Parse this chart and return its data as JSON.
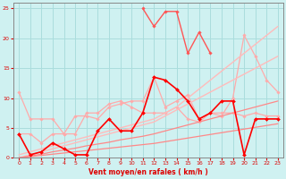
{
  "title": "",
  "xlabel": "Vent moyen/en rafales ( km/h )",
  "background_color": "#cff1f1",
  "grid_color": "#aadddd",
  "x": [
    0,
    1,
    2,
    3,
    4,
    5,
    6,
    7,
    8,
    9,
    10,
    11,
    12,
    13,
    14,
    15,
    16,
    17,
    18,
    19,
    20,
    21,
    22,
    23
  ],
  "xlim": [
    -0.5,
    23.5
  ],
  "ylim": [
    0,
    26
  ],
  "yticks": [
    0,
    5,
    10,
    15,
    20,
    25
  ],
  "xticks": [
    0,
    1,
    2,
    3,
    4,
    5,
    6,
    7,
    8,
    9,
    10,
    11,
    12,
    13,
    14,
    15,
    16,
    17,
    18,
    19,
    20,
    21,
    22,
    23
  ],
  "series": [
    {
      "color": "#ffaaaa",
      "linewidth": 0.9,
      "marker": "D",
      "markersize": 1.8,
      "y": [
        11.0,
        6.5,
        6.5,
        6.5,
        4.0,
        7.0,
        7.0,
        6.5,
        8.5,
        9.0,
        9.5,
        9.5,
        13.5,
        8.5,
        9.5,
        10.5,
        6.5,
        7.5,
        7.0,
        10.0,
        20.5,
        17.0,
        13.0,
        11.0
      ]
    },
    {
      "color": "#ffaaaa",
      "linewidth": 0.9,
      "marker": "D",
      "markersize": 1.8,
      "y": [
        4.0,
        4.0,
        2.5,
        4.0,
        4.0,
        4.0,
        7.5,
        7.5,
        9.0,
        9.5,
        8.5,
        7.5,
        7.5,
        7.5,
        8.5,
        6.5,
        6.0,
        7.5,
        7.5,
        7.5,
        7.0,
        7.5,
        7.0,
        7.0
      ]
    },
    {
      "color": "#ffbbbb",
      "linewidth": 1.0,
      "marker": null,
      "markersize": 0,
      "y": [
        0.5,
        1.0,
        1.5,
        2.0,
        2.5,
        3.0,
        3.5,
        4.0,
        4.5,
        5.0,
        5.5,
        6.0,
        6.5,
        7.5,
        8.5,
        10.0,
        11.5,
        13.0,
        14.5,
        16.0,
        17.5,
        19.0,
        20.5,
        22.0
      ]
    },
    {
      "color": "#ffbbbb",
      "linewidth": 1.0,
      "marker": null,
      "markersize": 0,
      "y": [
        0.0,
        0.5,
        1.0,
        1.5,
        2.0,
        2.5,
        3.0,
        3.5,
        4.0,
        4.5,
        5.0,
        5.5,
        6.0,
        7.0,
        8.0,
        9.0,
        10.0,
        11.0,
        12.0,
        13.0,
        14.0,
        15.0,
        16.0,
        17.0
      ]
    },
    {
      "color": "#ff8888",
      "linewidth": 0.9,
      "marker": null,
      "markersize": 0,
      "y": [
        0.0,
        0.3,
        0.6,
        1.0,
        1.3,
        1.6,
        2.0,
        2.3,
        2.6,
        3.0,
        3.3,
        3.6,
        4.0,
        4.5,
        5.0,
        5.5,
        6.0,
        6.5,
        7.0,
        7.5,
        8.0,
        8.5,
        9.0,
        9.5
      ]
    },
    {
      "color": "#ff8888",
      "linewidth": 0.9,
      "marker": null,
      "markersize": 0,
      "y": [
        0.0,
        0.2,
        0.4,
        0.6,
        0.8,
        1.0,
        1.2,
        1.4,
        1.6,
        1.8,
        2.0,
        2.2,
        2.4,
        2.7,
        3.0,
        3.3,
        3.6,
        3.9,
        4.2,
        4.5,
        4.8,
        5.1,
        5.4,
        5.7
      ]
    },
    {
      "color": "#ff0000",
      "linewidth": 1.2,
      "marker": "D",
      "markersize": 2.0,
      "y": [
        4.0,
        0.5,
        1.0,
        2.5,
        1.5,
        0.5,
        0.5,
        4.5,
        6.5,
        4.5,
        4.5,
        7.5,
        13.5,
        13.0,
        11.5,
        9.5,
        6.5,
        7.5,
        9.5,
        9.5,
        0.5,
        6.5,
        6.5,
        6.5
      ]
    },
    {
      "color": "#ff5555",
      "linewidth": 1.0,
      "marker": "D",
      "markersize": 1.8,
      "y": [
        null,
        null,
        null,
        null,
        null,
        null,
        null,
        null,
        null,
        null,
        null,
        25.0,
        22.0,
        24.5,
        24.5,
        17.5,
        21.0,
        17.5,
        null,
        null,
        null,
        null,
        null,
        null
      ]
    }
  ]
}
